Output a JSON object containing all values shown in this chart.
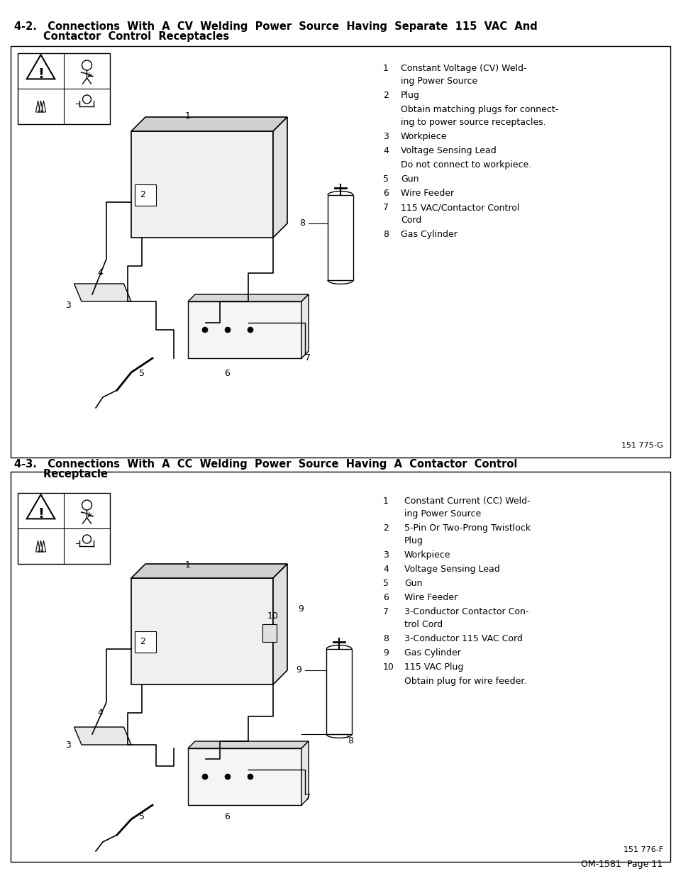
{
  "page_bg": "#ffffff",
  "border_color": "#000000",
  "text_color": "#000000",
  "title1": "4-2.   Connections  With  A  CV  Welding  Power  Source  Having  Separate  115  VAC  And\n        Contactor  Control  Receptacles",
  "title2": "4-3.   Connections  With  A  CC  Welding  Power  Source  Having  A  Contactor  Control\n        Receptacle",
  "section1_items": [
    [
      "1",
      "Constant Voltage (CV) Weld-\ning Power Source"
    ],
    [
      "2",
      "Plug"
    ],
    [
      "",
      "Obtain matching plugs for connect-\ning to power source receptacles."
    ],
    [
      "3",
      "Workpiece"
    ],
    [
      "4",
      "Voltage Sensing Lead"
    ],
    [
      "",
      "Do not connect to workpiece."
    ],
    [
      "5",
      "Gun"
    ],
    [
      "6",
      "Wire Feeder"
    ],
    [
      "7",
      "115 VAC/Contactor Control\nCord"
    ],
    [
      "8",
      "Gas Cylinder"
    ]
  ],
  "section2_items": [
    [
      "1",
      "Constant Current (CC) Weld-\ning Power Source"
    ],
    [
      "2",
      "5-Pin Or Two-Prong Twistlock\nPlug"
    ],
    [
      "3",
      "Workpiece"
    ],
    [
      "4",
      "Voltage Sensing Lead"
    ],
    [
      "5",
      "Gun"
    ],
    [
      "6",
      "Wire Feeder"
    ],
    [
      "7",
      "3-Conductor Contactor Con-\ntrol Cord"
    ],
    [
      "8",
      "3-Conductor 115 VAC Cord"
    ],
    [
      "9",
      "Gas Cylinder"
    ],
    [
      "10",
      "115 VAC Plug"
    ],
    [
      "",
      "Obtain plug for wire feeder."
    ]
  ],
  "footer": "OM-1581  Page 11",
  "diagram1_label": "151 775-G",
  "diagram2_label": "151 776-F"
}
